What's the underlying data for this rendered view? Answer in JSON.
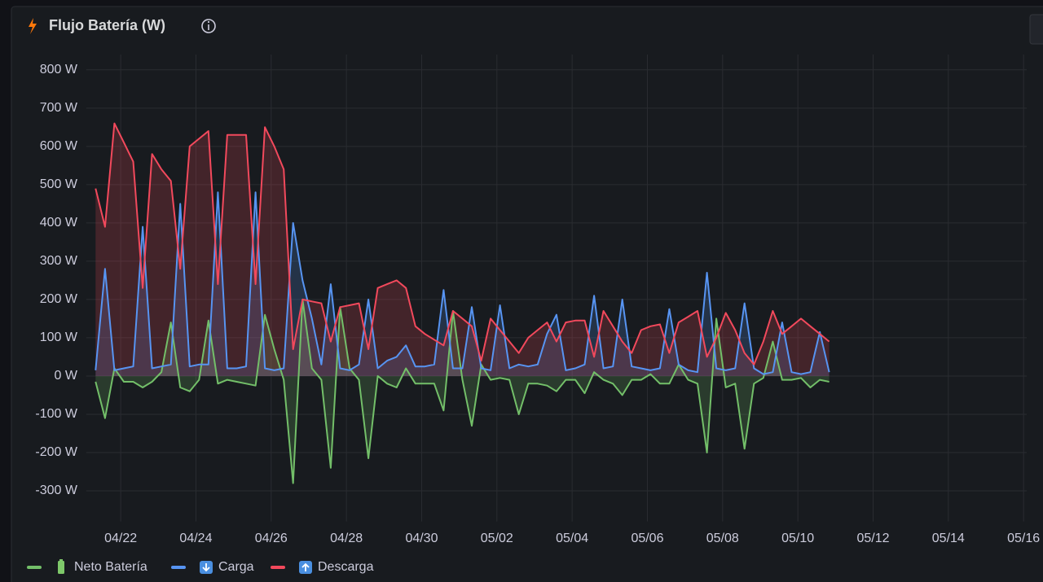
{
  "chart_data": {
    "type": "line",
    "title": "Flujo Batería (W)",
    "x": [
      "04/21 08:00",
      "04/21 14:00",
      "04/21 20:00",
      "04/22 02:00",
      "04/22 08:00",
      "04/22 14:00",
      "04/22 20:00",
      "04/23 02:00",
      "04/23 08:00",
      "04/23 14:00",
      "04/23 20:00",
      "04/24 02:00",
      "04/24 08:00",
      "04/24 14:00",
      "04/24 20:00",
      "04/25 02:00",
      "04/25 08:00",
      "04/25 14:00",
      "04/25 20:00",
      "04/26 02:00",
      "04/26 08:00",
      "04/26 14:00",
      "04/26 20:00",
      "04/27 02:00",
      "04/27 08:00",
      "04/27 14:00",
      "04/27 20:00",
      "04/28 02:00",
      "04/28 08:00",
      "04/28 14:00",
      "04/28 20:00",
      "04/29 02:00",
      "04/29 08:00",
      "04/29 14:00",
      "04/29 20:00",
      "04/30 02:00",
      "04/30 08:00",
      "04/30 14:00",
      "04/30 20:00",
      "05/01 02:00",
      "05/01 08:00",
      "05/01 14:00",
      "05/01 20:00",
      "05/02 02:00",
      "05/02 08:00",
      "05/02 14:00",
      "05/02 20:00",
      "05/03 02:00",
      "05/03 08:00",
      "05/03 14:00",
      "05/03 20:00",
      "05/04 02:00",
      "05/04 08:00",
      "05/04 14:00",
      "05/04 20:00",
      "05/05 02:00",
      "05/05 08:00",
      "05/05 14:00",
      "05/05 20:00",
      "05/06 02:00",
      "05/06 08:00",
      "05/06 14:00",
      "05/06 20:00",
      "05/07 02:00",
      "05/07 08:00",
      "05/07 14:00",
      "05/07 20:00",
      "05/08 02:00",
      "05/08 08:00",
      "05/08 14:00",
      "05/08 20:00",
      "05/09 02:00",
      "05/09 08:00",
      "05/09 14:00",
      "05/09 20:00",
      "05/10 02:00",
      "05/10 08:00",
      "05/10 14:00",
      "05/10 20:00"
    ],
    "series": [
      {
        "name": "Neto Batería",
        "color": "#73bf69",
        "values": [
          -15,
          -110,
          20,
          -15,
          -15,
          -30,
          -15,
          10,
          140,
          -30,
          -40,
          -10,
          145,
          -20,
          -10,
          -15,
          -20,
          -25,
          160,
          70,
          -10,
          -280,
          200,
          20,
          -10,
          -240,
          180,
          20,
          -10,
          -215,
          0,
          -20,
          -30,
          20,
          -20,
          -20,
          -20,
          -90,
          170,
          -10,
          -130,
          30,
          -10,
          -5,
          -10,
          -100,
          -20,
          -20,
          -25,
          -40,
          -10,
          -10,
          -45,
          10,
          -10,
          -20,
          -50,
          -10,
          -10,
          5,
          -20,
          -20,
          30,
          -10,
          -20,
          -200,
          150,
          -30,
          -20,
          -190,
          -20,
          -5,
          90,
          -10,
          -10,
          -5,
          -30,
          -10,
          -15
        ]
      },
      {
        "name": "Carga",
        "color": "#5794f2",
        "values": [
          15,
          280,
          15,
          20,
          25,
          390,
          20,
          25,
          30,
          450,
          25,
          30,
          30,
          480,
          20,
          20,
          25,
          480,
          20,
          15,
          20,
          400,
          250,
          150,
          30,
          240,
          20,
          15,
          30,
          200,
          20,
          40,
          50,
          80,
          25,
          25,
          30,
          225,
          20,
          20,
          180,
          20,
          15,
          185,
          20,
          30,
          25,
          30,
          110,
          160,
          15,
          20,
          30,
          210,
          20,
          25,
          200,
          25,
          20,
          15,
          20,
          175,
          30,
          15,
          10,
          270,
          20,
          15,
          20,
          190,
          20,
          5,
          10,
          140,
          10,
          5,
          10,
          115,
          10
        ]
      },
      {
        "name": "Descarga",
        "color": "#f2495c",
        "values": [
          490,
          390,
          660,
          610,
          560,
          230,
          580,
          540,
          510,
          280,
          600,
          620,
          640,
          240,
          630,
          630,
          630,
          240,
          650,
          600,
          540,
          70,
          200,
          195,
          190,
          90,
          180,
          185,
          190,
          70,
          230,
          240,
          250,
          230,
          130,
          110,
          95,
          80,
          170,
          150,
          130,
          40,
          150,
          120,
          90,
          60,
          100,
          120,
          140,
          90,
          140,
          145,
          145,
          50,
          170,
          130,
          90,
          60,
          120,
          130,
          135,
          60,
          140,
          155,
          170,
          50,
          100,
          165,
          120,
          60,
          30,
          90,
          170,
          110,
          130,
          150,
          130,
          110,
          90
        ]
      }
    ],
    "xlim": [
      "04/21 02:00",
      "05/16 02:00"
    ],
    "xticks": [
      "04/22",
      "04/24",
      "04/26",
      "04/28",
      "04/30",
      "05/02",
      "05/04",
      "05/06",
      "05/08",
      "05/10",
      "05/12",
      "05/14",
      "05/16"
    ],
    "ylim": [
      -380,
      840
    ],
    "yticks": [
      {
        "value": -300,
        "label": "-300 W"
      },
      {
        "value": -200,
        "label": "-200 W"
      },
      {
        "value": -100,
        "label": "-100 W"
      },
      {
        "value": 0,
        "label": "0 W"
      },
      {
        "value": 100,
        "label": "100 W"
      },
      {
        "value": 200,
        "label": "200 W"
      },
      {
        "value": 300,
        "label": "300 W"
      },
      {
        "value": 400,
        "label": "400 W"
      },
      {
        "value": 500,
        "label": "500 W"
      },
      {
        "value": 600,
        "label": "600 W"
      },
      {
        "value": 700,
        "label": "700 W"
      },
      {
        "value": 800,
        "label": "800 W"
      }
    ],
    "grid": true,
    "legend": "bottom",
    "fill_opacity": 0.2
  }
}
